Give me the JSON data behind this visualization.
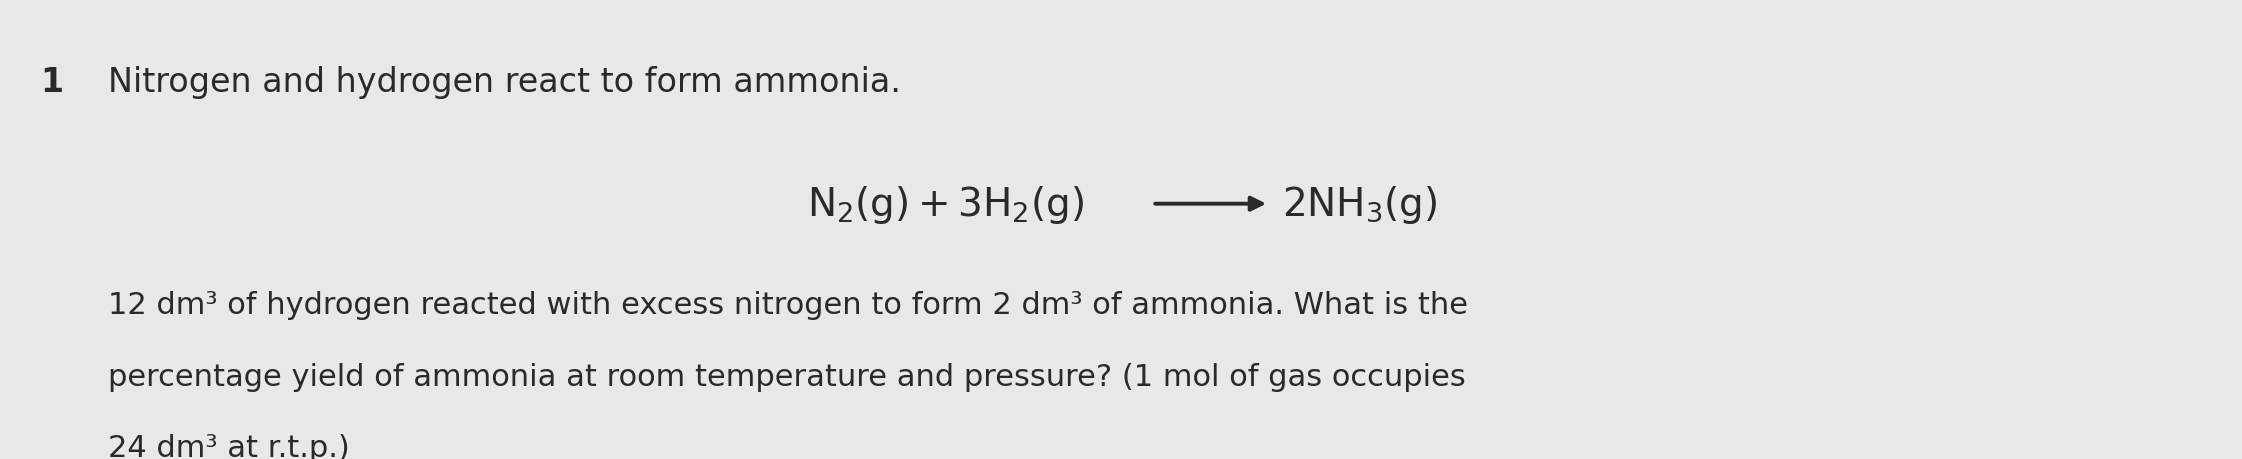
{
  "background_color": "#e8e8e8",
  "number_label": "1",
  "title_text": "Nitrogen and hydrogen react to form ammonia.",
  "eq_left": "$\\mathrm{N_2(g) + 3H_2(g)}$",
  "eq_right": "$\\mathrm{2NH_3(g)}$",
  "body_lines": [
    "12 dm³ of hydrogen reacted with excess nitrogen to form 2 dm³ of ammonia. What is the",
    "percentage yield of ammonia at room temperature and pressure? (1 mol of gas occupies",
    "24 dm³ at r.t.p.)"
  ],
  "text_color": "#2a2a2a",
  "number_fontsize": 24,
  "title_fontsize": 24,
  "eq_fontsize": 28,
  "body_fontsize": 22
}
